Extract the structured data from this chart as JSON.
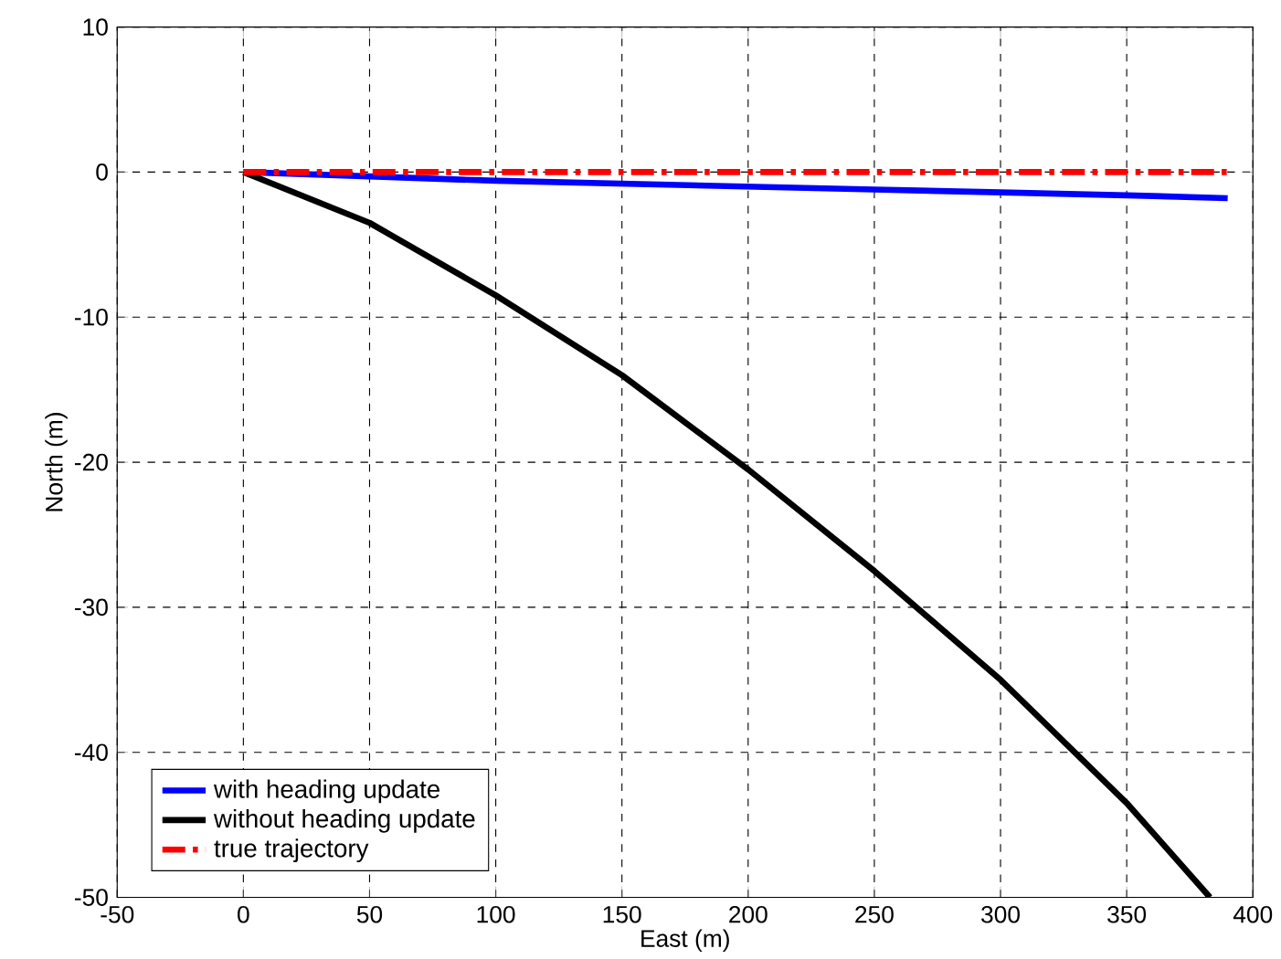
{
  "chart_data": {
    "type": "line",
    "xlabel": "East (m)",
    "ylabel": "North (m)",
    "xlim": [
      -50,
      400
    ],
    "ylim": [
      -50,
      10
    ],
    "xticks": [
      -50,
      0,
      50,
      100,
      150,
      200,
      250,
      300,
      350,
      400
    ],
    "yticks": [
      -50,
      -40,
      -30,
      -20,
      -10,
      0,
      10
    ],
    "grid": true,
    "legend": "bottom left",
    "series": [
      {
        "name": "with heading update",
        "color": "#0000ff",
        "line_style": "solid",
        "x": [
          0,
          50,
          100,
          150,
          200,
          250,
          300,
          350,
          390
        ],
        "values": [
          0,
          -0.3,
          -0.6,
          -0.8,
          -1,
          -1.2,
          -1.4,
          -1.6,
          -1.8
        ]
      },
      {
        "name": "without heading update",
        "color": "#000000",
        "line_style": "solid",
        "x": [
          0,
          50,
          100,
          150,
          200,
          250,
          300,
          350,
          383
        ],
        "values": [
          0,
          -3.5,
          -8.5,
          -14,
          -20.5,
          -27.5,
          -35,
          -43.5,
          -50
        ]
      },
      {
        "name": "true trajectory",
        "color": "#ff0000",
        "line_style": "dashdot",
        "x": [
          0,
          390
        ],
        "values": [
          0,
          0
        ]
      }
    ]
  }
}
